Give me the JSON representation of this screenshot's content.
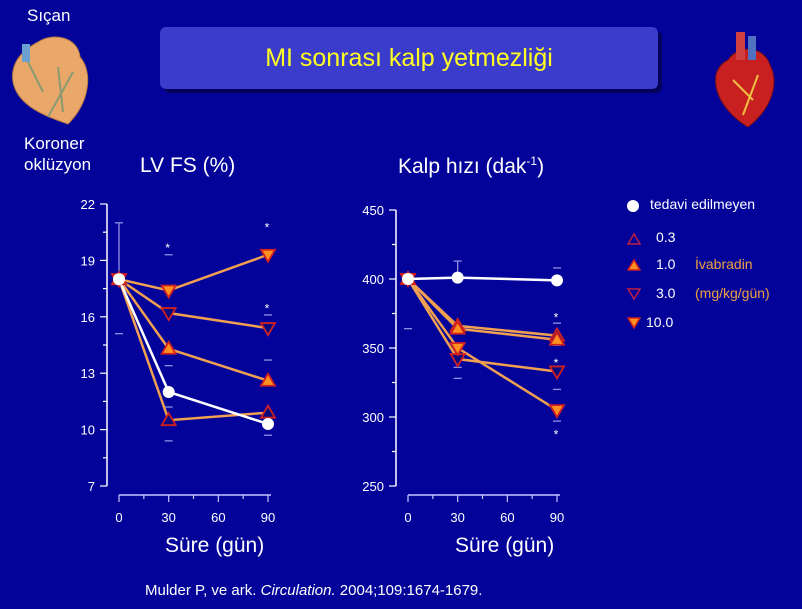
{
  "header": {
    "title": "MI sonrası kalp yetmezliği",
    "left_label": "Sıçan",
    "left_caption_line1": "Koroner",
    "left_caption_line2": "oklüzyon"
  },
  "legend": {
    "untreated": "tedavi edilmeyen",
    "doses": [
      "0.3",
      "1.0",
      "3.0",
      "10.0"
    ],
    "drug": "İvabradin",
    "unit": "(mg/kg/gün)"
  },
  "citation": {
    "prefix": "Mulder P, ve ark. ",
    "journal": "Circulation.",
    "suffix": " 2004;109:1674-1679."
  },
  "colors": {
    "background": "#03039a",
    "title": "#ffff20",
    "line": "#f0a050",
    "marker_edge": "#d02020",
    "marker_fill": "#ff9020",
    "untreated": "#ffffff"
  },
  "chart_data": [
    {
      "type": "line",
      "title": "LV FS (%)",
      "xlabel": "Süre (gün)",
      "x": [
        0,
        30,
        90
      ],
      "xticks": [
        "0",
        "30",
        "60",
        "90"
      ],
      "yticks": [
        "7",
        "10",
        "13",
        "16",
        "19",
        "22"
      ],
      "ylim": [
        7,
        22
      ],
      "series": [
        {
          "name": "tedavi edilmeyen",
          "marker": "circle",
          "values": [
            18,
            12,
            10.3
          ]
        },
        {
          "name": "0.3",
          "marker": "triangle-up-open",
          "values": [
            18,
            10.5,
            10.9
          ]
        },
        {
          "name": "1.0",
          "marker": "triangle-up-filled",
          "values": [
            18,
            14.3,
            12.6
          ]
        },
        {
          "name": "3.0",
          "marker": "triangle-down-open",
          "values": [
            18,
            16.2,
            15.4
          ]
        },
        {
          "name": "10.0",
          "marker": "triangle-down-filled",
          "values": [
            18,
            17.4,
            19.3
          ]
        }
      ],
      "error_caps": [
        [
          0,
          21
        ],
        [
          0,
          15.1
        ],
        [
          30,
          19.3
        ],
        [
          30,
          13.4
        ],
        [
          30,
          11.2
        ],
        [
          30,
          9.4
        ],
        [
          90,
          16.1
        ],
        [
          90,
          13.7
        ],
        [
          90,
          9.7
        ]
      ],
      "error_lines": [
        [
          0,
          18,
          21
        ]
      ],
      "annotations": [
        {
          "text": "*",
          "x": 30,
          "y": 19.7
        },
        {
          "text": "*",
          "x": 90,
          "y": 20.8
        },
        {
          "text": "*",
          "x": 90,
          "y": 16.5
        }
      ]
    },
    {
      "type": "line",
      "title": "Kalp hızı (dak",
      "title_sup": "-1",
      "title_end": ")",
      "xlabel": "Süre (gün)",
      "x": [
        0,
        30,
        90
      ],
      "xticks": [
        "0",
        "30",
        "60",
        "90"
      ],
      "yticks": [
        "250",
        "300",
        "350",
        "400",
        "450"
      ],
      "ylim": [
        250,
        450
      ],
      "series": [
        {
          "name": "tedavi edilmeyen",
          "marker": "circle",
          "values": [
            400,
            401,
            399
          ]
        },
        {
          "name": "0.3",
          "marker": "triangle-up-open",
          "values": [
            400,
            366,
            359
          ]
        },
        {
          "name": "1.0",
          "marker": "triangle-up-filled",
          "values": [
            400,
            364,
            356
          ]
        },
        {
          "name": "3.0",
          "marker": "triangle-down-open",
          "values": [
            400,
            342,
            333
          ]
        },
        {
          "name": "10.0",
          "marker": "triangle-down-filled",
          "values": [
            400,
            350,
            305
          ]
        }
      ],
      "error_caps": [
        [
          0,
          364
        ],
        [
          30,
          413
        ],
        [
          30,
          336
        ],
        [
          30,
          328
        ],
        [
          90,
          408
        ],
        [
          90,
          368
        ],
        [
          90,
          352
        ],
        [
          90,
          320
        ],
        [
          90,
          297
        ]
      ],
      "error_lines": [
        [
          30,
          401,
          413
        ]
      ],
      "annotations": [
        {
          "text": "*",
          "x": 90,
          "y": 373
        },
        {
          "text": "*",
          "x": 90,
          "y": 340
        },
        {
          "text": "*",
          "x": 90,
          "y": 288
        }
      ]
    }
  ]
}
